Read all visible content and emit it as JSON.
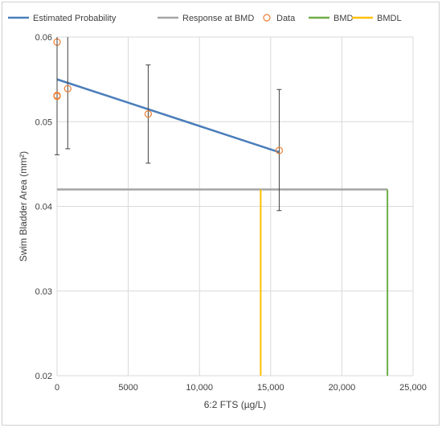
{
  "chart_data": {
    "type": "line",
    "xlabel": "6:2 FTS (µg/L)",
    "ylabel": "Swim Bladder Area (mm²)",
    "xlim": [
      0,
      25000
    ],
    "ylim": [
      0.02,
      0.06
    ],
    "x_ticks": [
      0,
      5000,
      10000,
      15000,
      20000,
      25000
    ],
    "x_tick_labels": [
      "0",
      "5000",
      "10,000",
      "15,000",
      "20,000",
      "25,000"
    ],
    "y_ticks": [
      0.02,
      0.03,
      0.04,
      0.05,
      0.06
    ],
    "y_tick_labels": [
      "0.02",
      "0.03",
      "0.04",
      "0.05",
      "0.06"
    ],
    "grid": true,
    "legend_position": "top",
    "legend": [
      "Estimated Probability",
      "Response at BMD",
      "Data",
      "BMD",
      "BMDL"
    ],
    "colors": {
      "estimated": "#4a7ebb",
      "response": "#a5a5a5",
      "data": "#ed7d31",
      "bmd": "#70ad47",
      "bmdl": "#ffc000",
      "errorbar": "#404040",
      "grid": "#d9d9d9"
    },
    "series": [
      {
        "name": "Estimated Probability",
        "kind": "line",
        "x": [
          0,
          15600
        ],
        "y": [
          0.055,
          0.0464
        ]
      },
      {
        "name": "Response at BMD",
        "kind": "line",
        "x": [
          0,
          23200
        ],
        "y": [
          0.042,
          0.042
        ]
      },
      {
        "name": "Data",
        "kind": "scatter",
        "x": [
          0,
          0,
          0,
          750,
          6400,
          15600
        ],
        "y": [
          0.0594,
          0.0531,
          0.053,
          0.0539,
          0.0509,
          0.0466
        ],
        "err_low": [
          null,
          0.0461,
          null,
          0.0468,
          0.0451,
          0.0395
        ],
        "err_high": [
          null,
          0.06,
          null,
          0.06,
          0.0567,
          0.0538
        ]
      },
      {
        "name": "BMD",
        "kind": "vline",
        "x": 23200,
        "y_from": 0.02,
        "y_to": 0.042
      },
      {
        "name": "BMDL",
        "kind": "vline",
        "x": 14300,
        "y_from": 0.02,
        "y_to": 0.042
      }
    ]
  }
}
